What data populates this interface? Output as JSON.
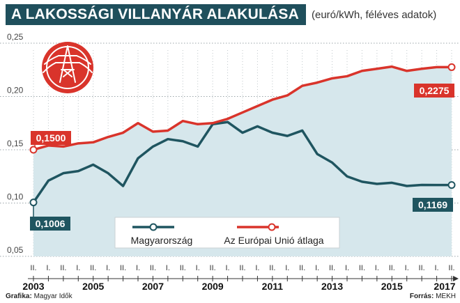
{
  "header": {
    "title": "A LAKOSSÁGI VILLANYÁR ALAKULÁSA",
    "subtitle": "(euró/kWh, féléves adatok)"
  },
  "footer": {
    "credit_label": "Grafika:",
    "credit_value": "Magyar Idők",
    "source_label": "Forrás:",
    "source_value": "MEKH"
  },
  "colors": {
    "hungary": "#1f5560",
    "eu": "#d9342b",
    "area": "#d6e7ec",
    "grid": "#9aa4a8",
    "icon_bg": "#d9342b"
  },
  "icon": "power-pylon-icon",
  "chart_data": {
    "type": "line",
    "title": "A LAKOSSÁGI VILLANYÁR ALAKULÁSA",
    "subtitle": "(euró/kWh, féléves adatok)",
    "ylim": [
      0.05,
      0.25
    ],
    "yticks": [
      "0,05",
      "0,10",
      "0,15",
      "0,20",
      "0,25"
    ],
    "half_labels": [
      "II.",
      "I.",
      "II.",
      "I.",
      "II.",
      "I.",
      "II.",
      "I.",
      "II.",
      "I.",
      "II.",
      "I.",
      "II.",
      "I.",
      "II.",
      "I.",
      "II.",
      "I.",
      "II.",
      "I.",
      "II.",
      "I.",
      "II.",
      "I.",
      "II.",
      "I.",
      "II.",
      "I.",
      "II."
    ],
    "year_labels": [
      "2003",
      "2005",
      "2007",
      "2009",
      "2011",
      "2013",
      "2015",
      "2017"
    ],
    "legend": {
      "position": "bottom-center"
    },
    "series": [
      {
        "name": "Magyarország",
        "key": "hungary",
        "values": [
          0.1006,
          0.121,
          0.128,
          0.13,
          0.136,
          0.128,
          0.116,
          0.142,
          0.153,
          0.16,
          0.158,
          0.153,
          0.174,
          0.176,
          0.166,
          0.172,
          0.166,
          0.163,
          0.168,
          0.146,
          0.138,
          0.125,
          0.12,
          0.118,
          0.119,
          0.116,
          0.117,
          0.1169,
          0.1169
        ],
        "start_label": "0,1006",
        "end_label": "0,1169"
      },
      {
        "name": "Az Európai Unió átlaga",
        "key": "eu",
        "values": [
          0.15,
          0.154,
          0.153,
          0.156,
          0.157,
          0.162,
          0.166,
          0.175,
          0.167,
          0.168,
          0.177,
          0.174,
          0.175,
          0.179,
          0.185,
          0.191,
          0.197,
          0.201,
          0.21,
          0.213,
          0.217,
          0.219,
          0.224,
          0.226,
          0.228,
          0.224,
          0.226,
          0.2275,
          0.2275
        ],
        "start_label": "0,1500",
        "end_label": "0,2275"
      }
    ]
  }
}
